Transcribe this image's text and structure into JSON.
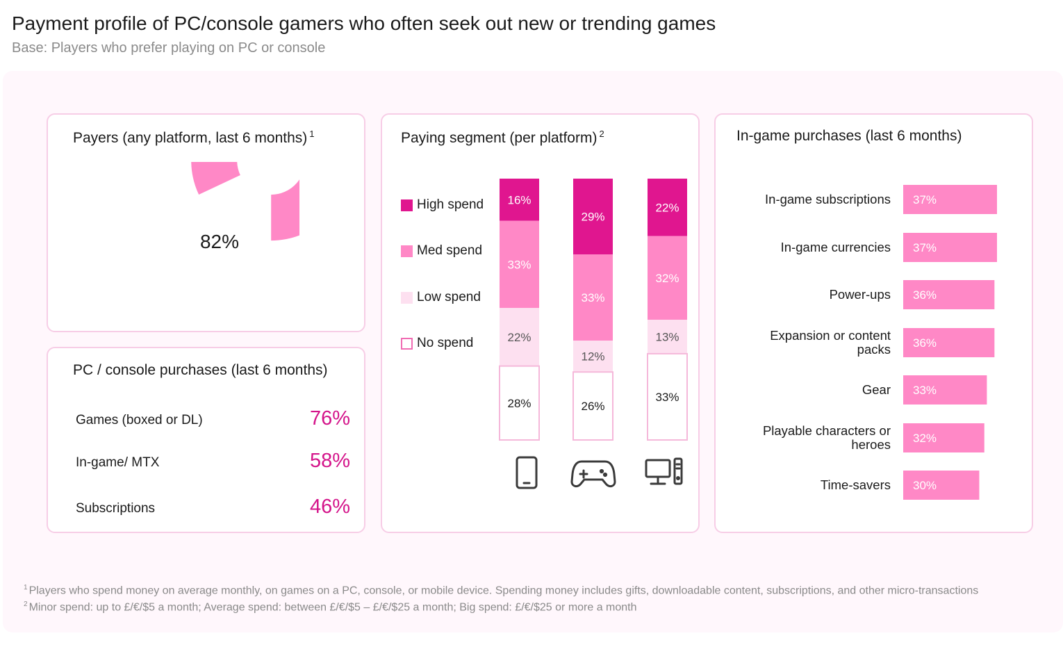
{
  "title": "Payment profile of PC/console gamers who often seek out new or trending games",
  "subtitle": "Base: Players who prefer playing on PC or console",
  "colors": {
    "high": "#e0168f",
    "med": "#ff88c6",
    "low": "#fde0f0",
    "none": "#ffffff",
    "accent_text": "#d4148a",
    "border": "#f7cde6"
  },
  "chart_data": [
    {
      "type": "pie",
      "title": "Payers (any platform, last 6 months)",
      "title_note": "1",
      "values": [
        82
      ],
      "center_label": "82%"
    },
    {
      "type": "table",
      "title": "PC / console purchases (last 6 months)",
      "rows": [
        {
          "label": "Games (boxed or DL)",
          "value": "76%"
        },
        {
          "label": "In-game/ MTX",
          "value": "58%"
        },
        {
          "label": "Subscriptions",
          "value": "46%"
        }
      ]
    },
    {
      "type": "bar",
      "stacked": true,
      "title": "Paying segment (per platform)",
      "title_note": "2",
      "categories": [
        "mobile-icon",
        "gamepad-icon",
        "desktop-pc-icon"
      ],
      "series": [
        {
          "name": "High spend",
          "values": [
            16,
            29,
            22
          ]
        },
        {
          "name": "Med spend",
          "values": [
            33,
            33,
            32
          ]
        },
        {
          "name": "Low spend",
          "values": [
            22,
            12,
            13
          ]
        },
        {
          "name": "No spend",
          "values": [
            28,
            26,
            33
          ]
        }
      ]
    },
    {
      "type": "bar",
      "orientation": "horizontal",
      "title": "In-game purchases (last 6 months)",
      "categories": [
        [
          "In-game subscriptions"
        ],
        [
          "In-game currencies"
        ],
        [
          "Power-ups"
        ],
        [
          "Expansion or content",
          "packs"
        ],
        [
          "Gear"
        ],
        [
          "Playable characters or",
          "heroes"
        ],
        [
          "Time-savers"
        ]
      ],
      "values": [
        37,
        37,
        36,
        36,
        33,
        32,
        30
      ]
    }
  ],
  "footnotes": {
    "note1_mark": "1",
    "note1": "Players who spend money on average monthly, on games on a PC, console, or mobile device. Spending money includes gifts, downloadable content, subscriptions, and other micro-transactions",
    "note2_mark": "2",
    "note2": "Minor spend: up to £/€/$5 a month; Average spend: between £/€/$5 – £/€/$25 a month; Big spend: £/€/$25 or more a month"
  }
}
